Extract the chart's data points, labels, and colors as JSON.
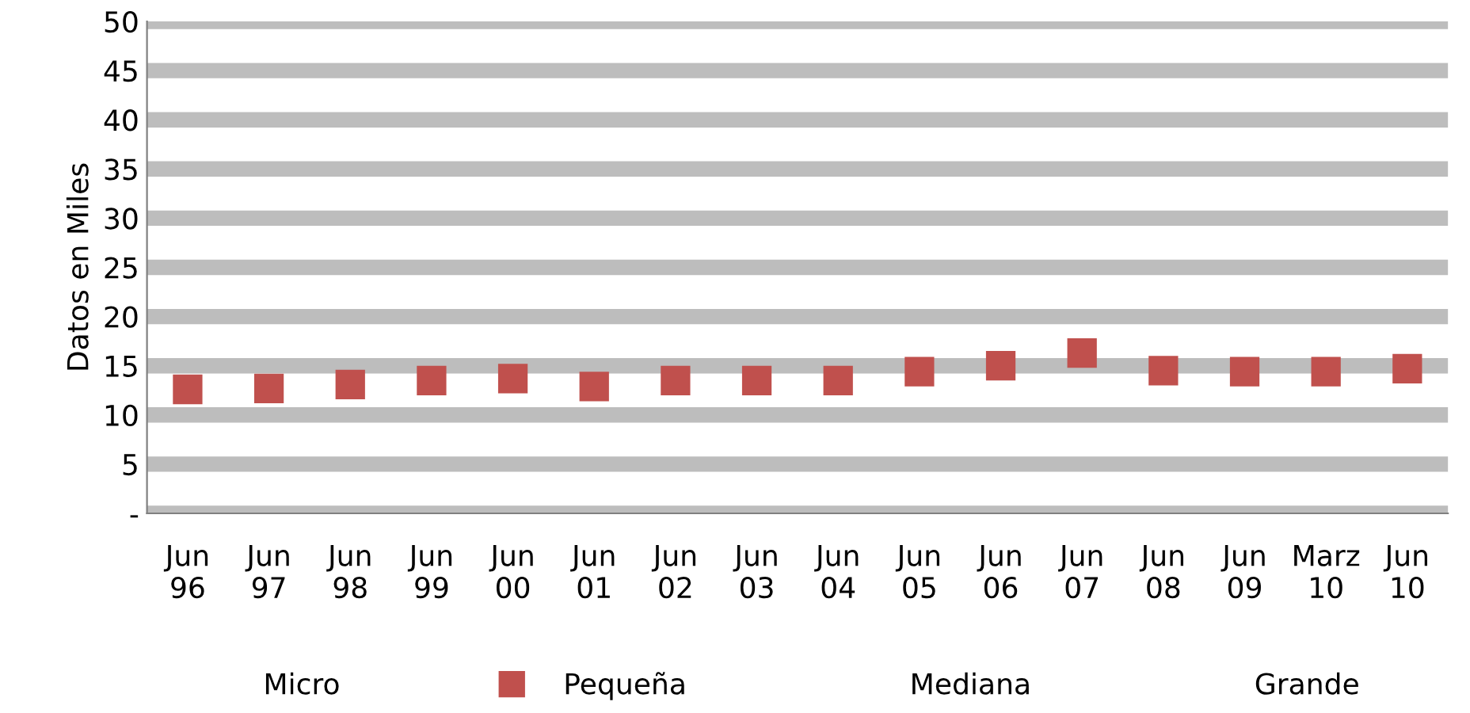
{
  "chart_data": {
    "type": "scatter",
    "ylabel": "Datos en Miles",
    "categories": [
      "Jun\n96",
      "Jun\n97",
      "Jun\n98",
      "Jun\n99",
      "Jun\n00",
      "Jun\n01",
      "Jun\n02",
      "Jun\n03",
      "Jun\n04",
      "Jun\n05",
      "Jun\n06",
      "Jun\n07",
      "Jun\n08",
      "Jun\n09",
      "Marz\n10",
      "Jun\n10"
    ],
    "series": [
      {
        "name": "Micro",
        "values": [
          null,
          null,
          null,
          null,
          null,
          null,
          null,
          null,
          null,
          null,
          null,
          null,
          null,
          null,
          null,
          null
        ]
      },
      {
        "name": "Pequeña",
        "color": "#c0504d",
        "values": [
          12.6,
          12.7,
          13.1,
          13.5,
          13.7,
          12.9,
          13.5,
          13.5,
          13.5,
          14.4,
          15.0,
          16.3,
          14.5,
          14.4,
          14.4,
          14.7
        ]
      },
      {
        "name": "Mediana",
        "values": [
          null,
          null,
          null,
          null,
          null,
          null,
          null,
          null,
          null,
          null,
          null,
          null,
          null,
          null,
          null,
          null
        ]
      },
      {
        "name": "Grande",
        "values": [
          null,
          null,
          null,
          null,
          null,
          null,
          null,
          null,
          null,
          null,
          null,
          null,
          null,
          null,
          null,
          null
        ]
      }
    ],
    "ylim": [
      0,
      50
    ],
    "yticks": [
      {
        "value": 0,
        "label": "-"
      },
      5,
      10,
      15,
      20,
      25,
      30,
      35,
      40,
      45,
      50
    ],
    "grid": "y",
    "legend": "bottom",
    "marker": "square"
  }
}
